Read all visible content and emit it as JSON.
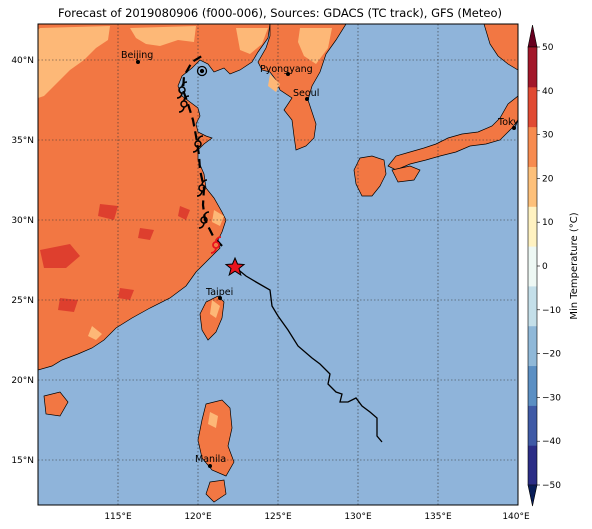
{
  "title": "Forecast of 2019080906 (f000-006), Sources: GDACS (TC track), GFS (Meteo)",
  "map": {
    "lon_range": [
      110,
      140
    ],
    "lat_range": [
      12.3,
      42
    ],
    "grid": true,
    "colors": {
      "sea": "#8fb4da",
      "land_20_30": "#f27743",
      "land_10_20": "#fdb877",
      "land_30_40": "#de3f2e",
      "track": "#000000",
      "current_position": "#e8141c"
    },
    "lon_ticks": [
      "115°E",
      "120°E",
      "125°E",
      "130°E",
      "135°E",
      "140°E"
    ],
    "lat_ticks": [
      "15°N",
      "20°N",
      "25°N",
      "30°N",
      "35°N",
      "40°N"
    ],
    "cities": [
      "Beijing",
      "Pyongyang",
      "Seoul",
      "Tokyo",
      "Taipei",
      "Manila"
    ]
  },
  "colorbar": {
    "label": "Min Temperature (°C)",
    "ticks": [
      "50",
      "40",
      "30",
      "20",
      "10",
      "0",
      "−10",
      "−20",
      "−30",
      "−40",
      "−50"
    ],
    "levels": [
      -50,
      -40,
      -30,
      -20,
      -10,
      0,
      10,
      20,
      30,
      40,
      50
    ],
    "colors": [
      "#2b2d86",
      "#3f5aa6",
      "#5b8fc3",
      "#8fb8d8",
      "#c4dfe9",
      "#eef8f4",
      "#fff2c1",
      "#fdc07a",
      "#f78b4f",
      "#e04a33",
      "#a2172a"
    ],
    "extend_colors": {
      "min": "#081d58",
      "max": "#67001f"
    }
  }
}
